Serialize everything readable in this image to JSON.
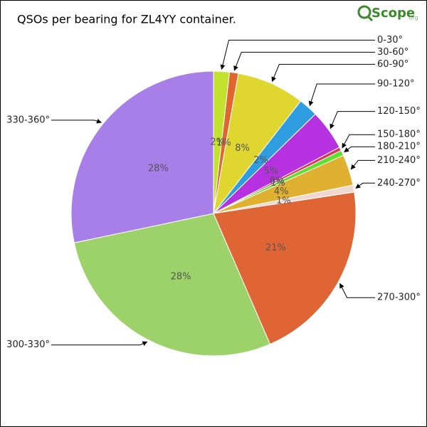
{
  "chart_data": {
    "type": "pie",
    "title": "QSOs per bearing for ZL4YY container.",
    "brand": "Scope",
    "brand_domain": ".org",
    "categories": [
      "0-30°",
      "30-60°",
      "60-90°",
      "90-120°",
      "120-150°",
      "150-180°",
      "180-210°",
      "210-240°",
      "240-270°",
      "270-300°",
      "300-330°",
      "330-360°"
    ],
    "values": [
      1.8,
      1.0,
      7.7,
      2.2,
      4.6,
      0.4,
      0.6,
      3.5,
      0.8,
      20.9,
      28.2,
      28.3
    ],
    "value_labels": [
      "2%",
      "1%",
      "8%",
      "2%",
      "5%",
      "0%",
      "1%",
      "4%",
      "1%",
      "21%",
      "28%",
      "28%"
    ],
    "colors": [
      "#c3e22e",
      "#e0662f",
      "#e0d630",
      "#2f9ee0",
      "#b632e0",
      "#e0325a",
      "#5ee02f",
      "#e0b030",
      "#efd8cf",
      "#e06535",
      "#9dd16a",
      "#a87ee8"
    ]
  }
}
